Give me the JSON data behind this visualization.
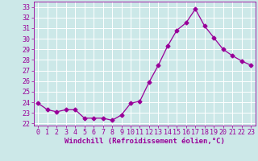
{
  "x": [
    0,
    1,
    2,
    3,
    4,
    5,
    6,
    7,
    8,
    9,
    10,
    11,
    12,
    13,
    14,
    15,
    16,
    17,
    18,
    19,
    20,
    21,
    22,
    23
  ],
  "y": [
    23.9,
    23.3,
    23.1,
    23.3,
    23.3,
    22.5,
    22.5,
    22.5,
    22.3,
    22.8,
    23.9,
    24.1,
    25.9,
    27.5,
    29.3,
    30.8,
    31.5,
    32.8,
    31.2,
    30.1,
    29.0,
    28.4,
    27.9,
    27.5
  ],
  "line_color": "#990099",
  "marker": "D",
  "marker_size": 2.5,
  "bg_color": "#cce8e8",
  "grid_color": "#ffffff",
  "xlabel": "Windchill (Refroidissement éolien,°C)",
  "xlabel_color": "#990099",
  "tick_color": "#990099",
  "xlim": [
    -0.5,
    23.5
  ],
  "ylim": [
    21.8,
    33.5
  ],
  "yticks": [
    22,
    23,
    24,
    25,
    26,
    27,
    28,
    29,
    30,
    31,
    32,
    33
  ],
  "xticks": [
    0,
    1,
    2,
    3,
    4,
    5,
    6,
    7,
    8,
    9,
    10,
    11,
    12,
    13,
    14,
    15,
    16,
    17,
    18,
    19,
    20,
    21,
    22,
    23
  ],
  "font_size_label": 6.5,
  "font_size_tick": 6.0
}
